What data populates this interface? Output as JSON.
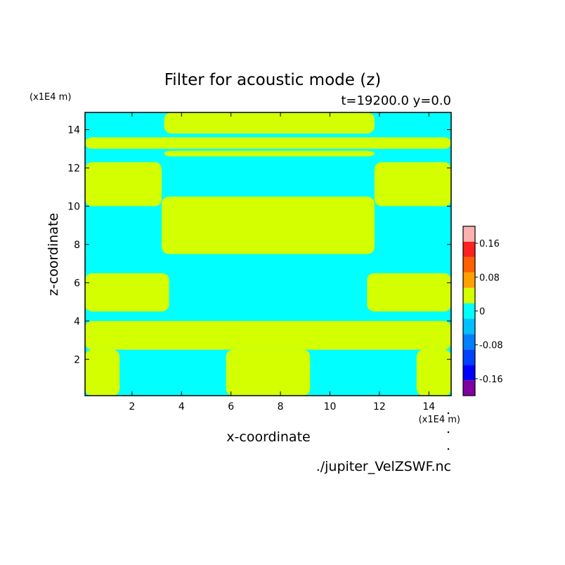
{
  "chart_data": {
    "type": "heatmap",
    "title": "Filter for acoustic mode (z)",
    "subtitle": "t=19200.0 y=0.0",
    "xlabel": "x-coordinate",
    "ylabel": "z-coordinate",
    "x_unit": "(x1E4 m)",
    "y_unit": "(x1E4 m)",
    "xlim": [
      0.1,
      14.9
    ],
    "ylim": [
      0.1,
      14.9
    ],
    "x_ticks": [
      2,
      4,
      6,
      8,
      10,
      12,
      14
    ],
    "y_ticks": [
      2,
      4,
      6,
      8,
      10,
      12,
      14
    ],
    "colorbar": {
      "levels": [
        -0.2,
        -0.16,
        -0.12,
        -0.08,
        -0.04,
        0,
        0.04,
        0.08,
        0.12,
        0.16,
        0.2
      ],
      "colors": [
        "#8000a0",
        "#0000ff",
        "#0040ff",
        "#0080ff",
        "#00c0ff",
        "#00ffff",
        "#d4ff00",
        "#ffa000",
        "#ff6000",
        "#ff2020",
        "#ffb0b0"
      ],
      "tick_labels": [
        "0.16",
        "0.08",
        "0",
        "-0.08",
        "-0.16"
      ],
      "tick_values": [
        0.16,
        0.08,
        0,
        -0.08,
        -0.16
      ]
    },
    "positive_color": "#d4ff00",
    "negative_color": "#00ffff",
    "positive_regions": [
      {
        "z": [
          13.8,
          14.9
        ],
        "x": [
          3.3,
          11.8
        ]
      },
      {
        "z": [
          13.0,
          13.6
        ],
        "x": [
          0.1,
          14.9
        ]
      },
      {
        "z": [
          12.6,
          12.9
        ],
        "x": [
          3.3,
          11.8
        ]
      },
      {
        "z": [
          10.0,
          12.3
        ],
        "x": [
          0.1,
          3.2
        ]
      },
      {
        "z": [
          10.0,
          12.3
        ],
        "x": [
          11.8,
          14.9
        ]
      },
      {
        "z": [
          7.5,
          10.5
        ],
        "x": [
          3.2,
          11.8
        ]
      },
      {
        "z": [
          4.5,
          6.5
        ],
        "x": [
          0.1,
          3.5
        ]
      },
      {
        "z": [
          4.5,
          6.5
        ],
        "x": [
          11.5,
          14.9
        ]
      },
      {
        "z": [
          2.5,
          4.0
        ],
        "x": [
          0.1,
          14.9
        ]
      },
      {
        "z": [
          0.1,
          2.5
        ],
        "x": [
          0.1,
          1.5
        ]
      },
      {
        "z": [
          0.1,
          2.5
        ],
        "x": [
          13.5,
          14.9
        ]
      },
      {
        "z": [
          0.1,
          2.5
        ],
        "x": [
          5.8,
          9.2
        ]
      }
    ]
  },
  "footer": {
    "source": "./jupiter_VelZSWF.nc"
  }
}
